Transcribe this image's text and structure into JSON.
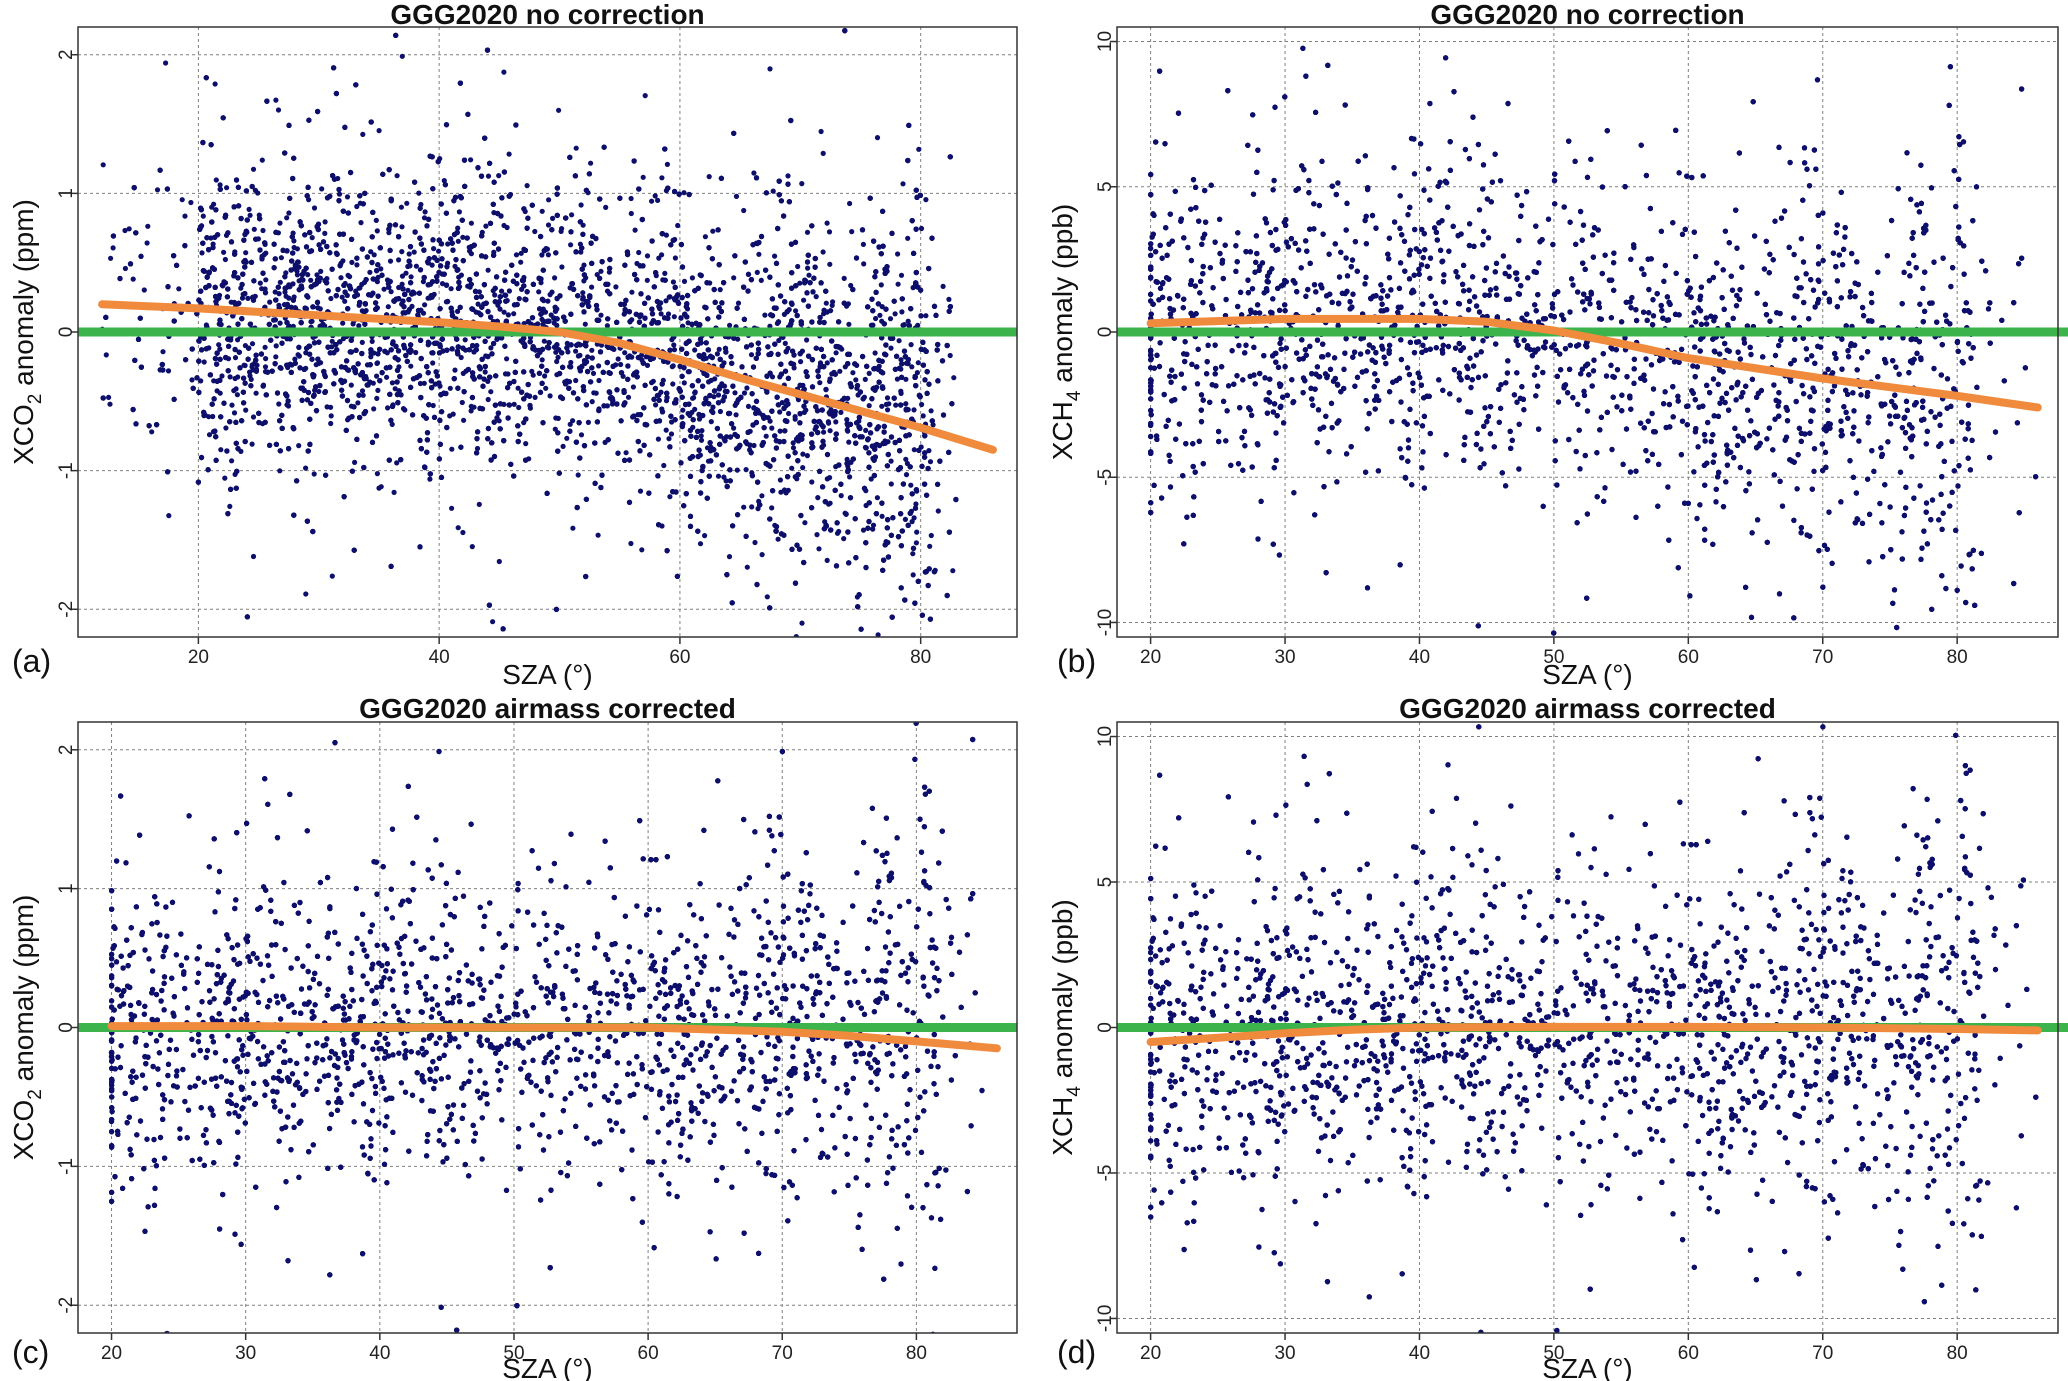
{
  "colors": {
    "points": "#0d0f6b",
    "fit_line": "#f08a3c",
    "zero_line": "#3cb44b",
    "grid": "#808080",
    "frame": "#333333"
  },
  "chart_data": [
    {
      "type": "scatter",
      "panel_label": "(a)",
      "title": "GGG2020 no correction",
      "xlabel": "SZA (°)",
      "ylabel_pre": "XCO",
      "ylabel_sub": "2",
      "ylabel_post": " anomaly (ppm)",
      "xlim": [
        10,
        88
      ],
      "ylim": [
        -2.2,
        2.2
      ],
      "xticks": [
        20,
        40,
        60,
        80
      ],
      "xgrid": [
        20,
        40,
        60,
        80
      ],
      "yticks": [
        -2,
        -1,
        0,
        1,
        2
      ],
      "grid": true,
      "reference_line": {
        "name": "zero",
        "y": 0
      },
      "fit_curve": {
        "x": [
          12,
          20,
          30,
          40,
          45,
          50,
          55,
          60,
          65,
          70,
          75,
          80,
          86
        ],
        "y": [
          0.2,
          0.17,
          0.12,
          0.07,
          0.04,
          0.0,
          -0.08,
          -0.2,
          -0.33,
          -0.45,
          -0.57,
          -0.69,
          -0.85
        ]
      },
      "point_cloud": {
        "x_range": [
          12,
          83
        ],
        "dense_from": 20,
        "dense_to": 81,
        "spread": 0.5,
        "trend": "follows fit curve",
        "count": 9000
      }
    },
    {
      "type": "scatter",
      "panel_label": "(b)",
      "title": "GGG2020 no correction",
      "xlabel": "SZA (°)",
      "ylabel_pre": "XCH",
      "ylabel_sub": "4",
      "ylabel_post": " anomaly (ppb)",
      "xlim": [
        17.5,
        87.5
      ],
      "ylim": [
        -10.5,
        10.5
      ],
      "xticks": [
        20,
        30,
        40,
        50,
        60,
        70,
        80
      ],
      "xgrid": [
        20,
        30,
        40,
        50,
        60,
        70,
        80
      ],
      "yticks": [
        -10,
        -5,
        0,
        5,
        10
      ],
      "grid": true,
      "reference_line": {
        "name": "zero",
        "y": 0
      },
      "fit_curve": {
        "x": [
          20,
          30,
          40,
          45,
          50,
          55,
          60,
          70,
          80,
          86
        ],
        "y": [
          0.3,
          0.45,
          0.45,
          0.35,
          0.05,
          -0.4,
          -0.9,
          -1.6,
          -2.2,
          -2.6
        ]
      },
      "point_cloud": {
        "x_range": [
          20,
          86
        ],
        "dense_from": 20,
        "dense_to": 81.5,
        "spread": 2.6,
        "trend": "follows fit curve",
        "count": 9000
      }
    },
    {
      "type": "scatter",
      "panel_label": "(c)",
      "title": "GGG2020 airmass corrected",
      "xlabel": "SZA (°)",
      "ylabel_pre": "XCO",
      "ylabel_sub": "2",
      "ylabel_post": " anomaly (ppm)",
      "xlim": [
        17.5,
        87.5
      ],
      "ylim": [
        -2.2,
        2.2
      ],
      "xticks": [
        20,
        30,
        40,
        50,
        60,
        70,
        80
      ],
      "xgrid": [
        20,
        30,
        40,
        50,
        60,
        70,
        80
      ],
      "yticks": [
        -2,
        -1,
        0,
        1,
        2
      ],
      "grid": true,
      "reference_line": {
        "name": "zero",
        "y": 0
      },
      "fit_curve": {
        "x": [
          20,
          30,
          40,
          50,
          60,
          70,
          75,
          80,
          86
        ],
        "y": [
          0.01,
          0.01,
          0.0,
          0.0,
          0.0,
          -0.03,
          -0.06,
          -0.1,
          -0.15
        ]
      },
      "point_cloud": {
        "x_range": [
          20,
          85
        ],
        "dense_from": 20,
        "dense_to": 82,
        "spread": 0.5,
        "trend": "flat",
        "count": 9000
      }
    },
    {
      "type": "scatter",
      "panel_label": "(d)",
      "title": "GGG2020 airmass corrected",
      "xlabel": "SZA (°)",
      "ylabel_pre": "XCH",
      "ylabel_sub": "4",
      "ylabel_post": " anomaly (ppb)",
      "xlim": [
        17.5,
        87.5
      ],
      "ylim": [
        -10.5,
        10.5
      ],
      "xticks": [
        20,
        30,
        40,
        50,
        60,
        70,
        80
      ],
      "xgrid": [
        20,
        30,
        40,
        50,
        60,
        70,
        80
      ],
      "yticks": [
        -10,
        -5,
        0,
        5,
        10
      ],
      "grid": true,
      "reference_line": {
        "name": "zero",
        "y": 0
      },
      "fit_curve": {
        "x": [
          20,
          25,
          30,
          35,
          40,
          50,
          60,
          70,
          80,
          86
        ],
        "y": [
          -0.5,
          -0.35,
          -0.2,
          -0.08,
          0.0,
          0.02,
          0.02,
          0.0,
          -0.05,
          -0.1
        ]
      },
      "point_cloud": {
        "x_range": [
          20,
          86
        ],
        "dense_from": 20,
        "dense_to": 82,
        "spread": 2.6,
        "trend": "flat",
        "count": 9000
      }
    }
  ]
}
